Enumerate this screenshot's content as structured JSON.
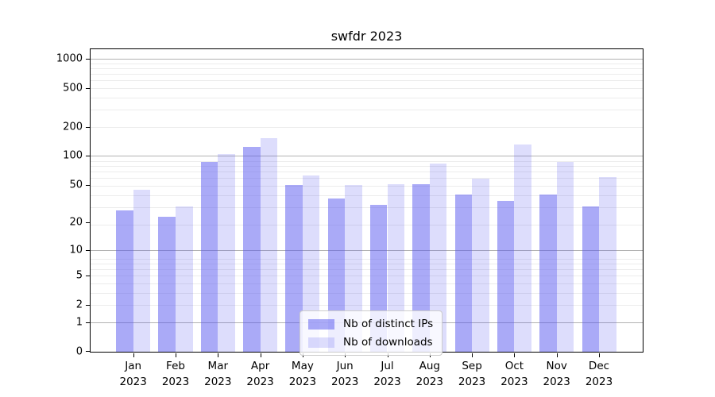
{
  "title": "swfdr 2023",
  "chart_data": {
    "type": "bar",
    "title": "swfdr 2023",
    "year": "2023",
    "categories": [
      "Jan",
      "Feb",
      "Mar",
      "Apr",
      "May",
      "Jun",
      "Jul",
      "Aug",
      "Sep",
      "Oct",
      "Nov",
      "Dec"
    ],
    "series": [
      {
        "name": "Nb of distinct IPs",
        "color": "rgba(85,85,240,0.5)",
        "values": [
          27,
          23,
          86,
          125,
          50,
          36,
          31,
          51,
          40,
          34,
          40,
          30
        ]
      },
      {
        "name": "Nb of downloads",
        "color": "rgba(85,85,240,0.2)",
        "values": [
          45,
          30,
          105,
          152,
          63,
          50,
          51,
          84,
          58,
          132,
          86,
          61
        ]
      }
    ],
    "yscale": "log10(value+1)",
    "yticks": [
      0,
      1,
      2,
      5,
      10,
      20,
      50,
      100,
      200,
      500,
      1000
    ],
    "ylim": [
      0,
      1250
    ],
    "grid": true,
    "legend_position": "lower center",
    "colors": {
      "grid_major": "#b2b2b2",
      "grid_minor": "#ececec",
      "text": "#000000"
    }
  }
}
